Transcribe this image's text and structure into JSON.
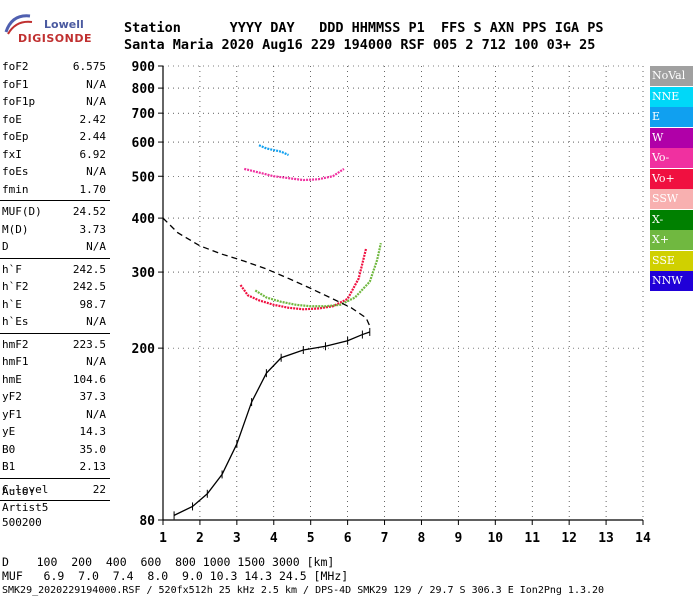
{
  "logo": {
    "line1": "Lowell",
    "line2": "DIGISONDE"
  },
  "header": {
    "line1": "Station      YYYY DAY   DDD HHMMSS P1  FFS S AXN PPS IGA PS",
    "line2": "Santa Maria 2020 Aug16 229 194000 RSF 005 2 712 100 03+ 25"
  },
  "params": [
    {
      "group": [
        {
          "name": "foF2",
          "value": "6.575"
        },
        {
          "name": "foF1",
          "value": "N/A"
        },
        {
          "name": "foF1p",
          "value": "N/A"
        },
        {
          "name": "foE",
          "value": "2.42"
        },
        {
          "name": "foEp",
          "value": "2.44"
        },
        {
          "name": "fxI",
          "value": "6.92"
        },
        {
          "name": "foEs",
          "value": "N/A"
        },
        {
          "name": "fmin",
          "value": "1.70"
        }
      ]
    },
    {
      "group": [
        {
          "name": "MUF(D)",
          "value": "24.52"
        },
        {
          "name": "M(D)",
          "value": "3.73"
        },
        {
          "name": "D",
          "value": "N/A"
        }
      ]
    },
    {
      "group": [
        {
          "name": "h`F",
          "value": "242.5"
        },
        {
          "name": "h`F2",
          "value": "242.5"
        },
        {
          "name": "h`E",
          "value": "98.7"
        },
        {
          "name": "h`Es",
          "value": "N/A"
        }
      ]
    },
    {
      "group": [
        {
          "name": "hmF2",
          "value": "223.5"
        },
        {
          "name": "hmF1",
          "value": "N/A"
        },
        {
          "name": "hmE",
          "value": "104.6"
        },
        {
          "name": "yF2",
          "value": "37.3"
        },
        {
          "name": "yF1",
          "value": "N/A"
        },
        {
          "name": "yE",
          "value": "14.3"
        },
        {
          "name": "B0",
          "value": "35.0"
        },
        {
          "name": "B1",
          "value": "2.13"
        }
      ]
    },
    {
      "group": [
        {
          "name": "C-level",
          "value": "22"
        }
      ]
    }
  ],
  "autoscaling": {
    "line1": "Auto:",
    "line2": "Artist5",
    "line3": "500200"
  },
  "legend": [
    {
      "label": "NoVal",
      "color": "#a0a0a0"
    },
    {
      "label": "NNE",
      "color": "#00d8f8"
    },
    {
      "label": "E",
      "color": "#10a0f0"
    },
    {
      "label": "W",
      "color": "#b000a8"
    },
    {
      "label": "Vo-",
      "color": "#f030a0"
    },
    {
      "label": "Vo+",
      "color": "#f01040"
    },
    {
      "label": "SSW",
      "color": "#f8b0b0"
    },
    {
      "label": "X-",
      "color": "#008000"
    },
    {
      "label": "X+",
      "color": "#70b840"
    },
    {
      "label": "SSE",
      "color": "#d0d000"
    },
    {
      "label": "NNW",
      "color": "#2000d8"
    }
  ],
  "footer": {
    "row1": "D    100  200  400  600  800 1000 1500 3000 [km]",
    "row2": "MUF   6.9  7.0  7.4  8.0  9.0 10.3 14.3 24.5 [MHz]",
    "row3": "SMK29_2020229194000.RSF / 520fx512h 25 kHz 2.5 km / DPS-4D SMK29 129 / 29.7 S 306.3 E Ion2Png 1.3.20"
  },
  "chart_data": {
    "type": "scatter",
    "xlabel": "",
    "ylabel": "",
    "xlim": [
      1,
      14
    ],
    "ylim": [
      80,
      900
    ],
    "x_ticks": [
      "1",
      "2",
      "3",
      "4",
      "5",
      "6",
      "7",
      "8",
      "9",
      "10",
      "11",
      "12",
      "13",
      "14"
    ],
    "y_ticks": [
      "80",
      "200",
      "300",
      "400",
      "500",
      "600",
      "700",
      "800",
      "900"
    ],
    "y_scale": "log",
    "series": [
      {
        "name": "Vo+",
        "color": "#f01040",
        "x": [
          3.1,
          3.3,
          3.6,
          4.0,
          4.4,
          4.8,
          5.2,
          5.6,
          6.0,
          6.3,
          6.5
        ],
        "y": [
          280,
          265,
          258,
          252,
          248,
          246,
          247,
          250,
          260,
          290,
          340
        ]
      },
      {
        "name": "X+",
        "color": "#70b840",
        "x": [
          3.5,
          3.8,
          4.2,
          4.6,
          5.0,
          5.4,
          5.8,
          6.2,
          6.6,
          6.8,
          6.9
        ],
        "y": [
          272,
          262,
          256,
          252,
          250,
          250,
          252,
          262,
          285,
          320,
          350
        ]
      },
      {
        "name": "Vo-",
        "color": "#f030a0",
        "x": [
          3.2,
          3.6,
          4.0,
          4.4,
          4.8,
          5.2,
          5.6,
          5.9
        ],
        "y": [
          520,
          510,
          500,
          495,
          490,
          492,
          500,
          520
        ]
      },
      {
        "name": "E",
        "color": "#10a0f0",
        "x": [
          3.6,
          3.8,
          4.0,
          4.2,
          4.4
        ],
        "y": [
          590,
          580,
          575,
          570,
          560
        ]
      },
      {
        "name": "profile",
        "color": "#000000",
        "x": [
          1.3,
          1.8,
          2.2,
          2.6,
          3.0,
          3.4,
          3.8,
          4.2,
          4.8,
          5.4,
          6.0,
          6.4,
          6.6
        ],
        "y": [
          82,
          86,
          92,
          102,
          120,
          150,
          175,
          190,
          198,
          202,
          208,
          215,
          218
        ]
      },
      {
        "name": "topside",
        "color": "#000000",
        "x": [
          1.0,
          1.4,
          2.0,
          2.6,
          3.2,
          3.8,
          4.4,
          5.0,
          5.6,
          6.1,
          6.5,
          6.6
        ],
        "y": [
          400,
          370,
          345,
          330,
          318,
          305,
          290,
          275,
          260,
          248,
          235,
          225
        ]
      }
    ]
  }
}
